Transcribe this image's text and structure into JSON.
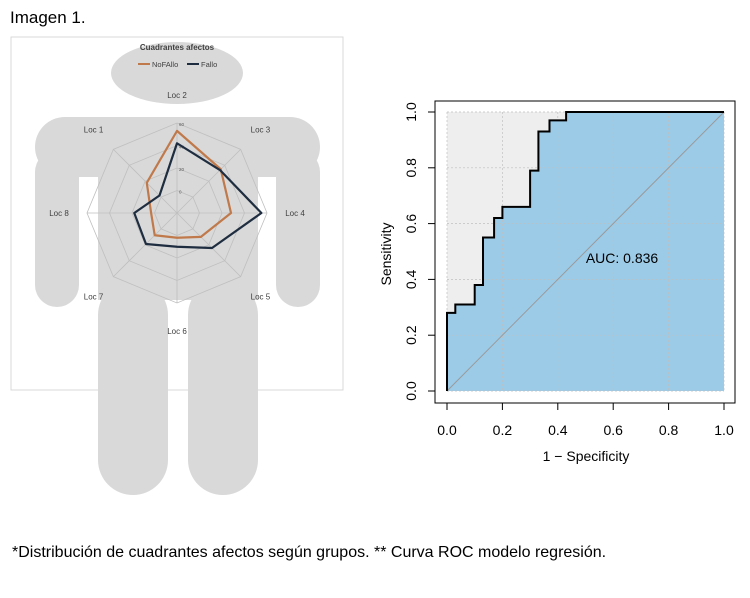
{
  "header": {
    "label": "Imagen 1."
  },
  "caption": {
    "text": "*Distribución de cuadrantes afectos según grupos. ** Curva ROC modelo regresión."
  },
  "chart_data": [
    {
      "type": "radar",
      "title": "Cuadrantes afectos",
      "axes": [
        "Loc 2",
        "Loc 3",
        "Loc 4",
        "Loc 5",
        "Loc 6",
        "Loc 7",
        "Loc 8",
        "Loc 1"
      ],
      "rlim": [
        -20,
        60
      ],
      "rticks": [
        "-20",
        "0",
        "20",
        "40",
        "60"
      ],
      "legend_placement": "top",
      "series": [
        {
          "name": "NoFAllo",
          "color": "#c0794a",
          "values": [
            53,
            35,
            28,
            10,
            2,
            8,
            3,
            18
          ]
        },
        {
          "name": "Fallo",
          "color": "#1f2d40",
          "values": [
            42,
            34,
            55,
            24,
            10,
            19,
            18,
            2
          ]
        }
      ]
    },
    {
      "type": "line",
      "subtype": "roc",
      "xlabel": "1 − Specificity",
      "ylabel": "Sensitivity",
      "xlim": [
        0,
        1
      ],
      "ylim": [
        0,
        1
      ],
      "xticks": [
        "0.0",
        "0.2",
        "0.4",
        "0.6",
        "0.8",
        "1.0"
      ],
      "yticks": [
        "0.0",
        "0.2",
        "0.4",
        "0.6",
        "0.8",
        "1.0"
      ],
      "annotation": "AUC: 0.836",
      "auc": 0.836,
      "grid": true,
      "fill_color": "#9ccbe8",
      "x": [
        0,
        0,
        0.03,
        0.03,
        0.1,
        0.1,
        0.13,
        0.13,
        0.17,
        0.17,
        0.2,
        0.2,
        0.3,
        0.3,
        0.33,
        0.33,
        0.37,
        0.37,
        0.43,
        0.43,
        1
      ],
      "y": [
        0,
        0.28,
        0.28,
        0.31,
        0.31,
        0.38,
        0.38,
        0.55,
        0.55,
        0.62,
        0.62,
        0.66,
        0.66,
        0.79,
        0.79,
        0.93,
        0.93,
        0.97,
        0.97,
        1,
        1
      ]
    }
  ]
}
